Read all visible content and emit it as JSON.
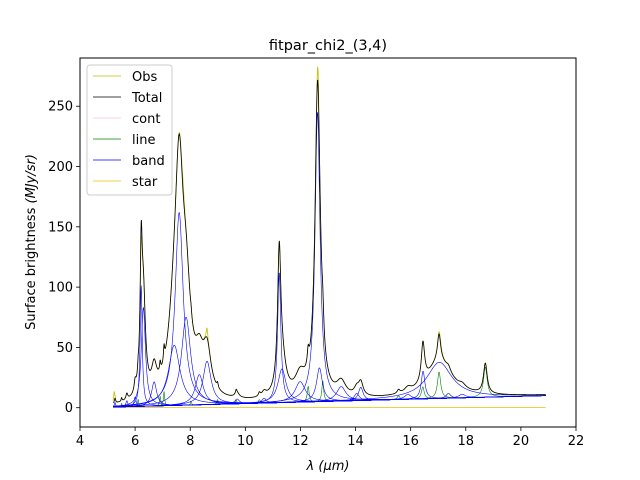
{
  "chart_data": {
    "type": "line",
    "title": "fitpar_chi2_(3,4)",
    "xlabel_symbol": "λ",
    "xlabel_unit": "(μm)",
    "ylabel_text": "Surface brightness",
    "ylabel_unit": "(MJy/sr)",
    "xlim": [
      4,
      22
    ],
    "ylim": [
      -16,
      290
    ],
    "xticks": [
      4,
      6,
      8,
      10,
      12,
      14,
      16,
      18,
      20,
      22
    ],
    "yticks": [
      0,
      50,
      100,
      150,
      200,
      250
    ],
    "grid": false,
    "legend_position": "top-left",
    "legend": [
      {
        "name": "Obs",
        "color": "#bfbf00"
      },
      {
        "name": "Total",
        "color": "#000000"
      },
      {
        "name": "cont",
        "color": "#ffc0cb"
      },
      {
        "name": "line",
        "color": "#008000"
      },
      {
        "name": "band",
        "color": "#0000ff"
      },
      {
        "name": "star",
        "color": "#e6c200"
      }
    ],
    "wave_range": [
      5.2,
      20.9
    ],
    "continuum": {
      "start": 0.5,
      "end": 10.0
    },
    "star": {
      "level": 0.3
    },
    "bands": [
      {
        "center": 5.27,
        "amplitude": 4,
        "fwhm": 0.05
      },
      {
        "center": 5.7,
        "amplitude": 5,
        "fwhm": 0.08
      },
      {
        "center": 6.0,
        "amplitude": 8,
        "fwhm": 0.08
      },
      {
        "center": 6.22,
        "amplitude": 100,
        "fwhm": 0.09
      },
      {
        "center": 6.3,
        "amplitude": 82,
        "fwhm": 0.18
      },
      {
        "center": 6.69,
        "amplitude": 20,
        "fwhm": 0.22
      },
      {
        "center": 7.42,
        "amplitude": 50,
        "fwhm": 0.5
      },
      {
        "center": 7.6,
        "amplitude": 160,
        "fwhm": 0.35
      },
      {
        "center": 7.85,
        "amplitude": 73,
        "fwhm": 0.4
      },
      {
        "center": 8.33,
        "amplitude": 25,
        "fwhm": 0.35
      },
      {
        "center": 8.61,
        "amplitude": 36,
        "fwhm": 0.35
      },
      {
        "center": 9.7,
        "amplitude": 4,
        "fwhm": 0.2
      },
      {
        "center": 10.68,
        "amplitude": 4,
        "fwhm": 0.2
      },
      {
        "center": 11.23,
        "amplitude": 108,
        "fwhm": 0.14
      },
      {
        "center": 11.33,
        "amplitude": 28,
        "fwhm": 0.35
      },
      {
        "center": 11.99,
        "amplitude": 17,
        "fwhm": 0.45
      },
      {
        "center": 12.62,
        "amplitude": 240,
        "fwhm": 0.22
      },
      {
        "center": 12.69,
        "amplitude": 28,
        "fwhm": 0.25
      },
      {
        "center": 13.48,
        "amplitude": 12,
        "fwhm": 0.4
      },
      {
        "center": 14.04,
        "amplitude": 6,
        "fwhm": 0.22
      },
      {
        "center": 14.19,
        "amplitude": 11,
        "fwhm": 0.2
      },
      {
        "center": 15.9,
        "amplitude": 4,
        "fwhm": 0.3
      },
      {
        "center": 16.45,
        "amplitude": 23,
        "fwhm": 0.16
      },
      {
        "center": 17.04,
        "amplitude": 30,
        "fwhm": 1.1
      },
      {
        "center": 17.37,
        "amplitude": 4,
        "fwhm": 0.2
      },
      {
        "center": 17.87,
        "amplitude": 3,
        "fwhm": 0.3
      }
    ],
    "lines": [
      {
        "center": 5.51,
        "amplitude": 3,
        "fwhm": 0.04
      },
      {
        "center": 6.11,
        "amplitude": 6,
        "fwhm": 0.04
      },
      {
        "center": 6.91,
        "amplitude": 8,
        "fwhm": 0.05
      },
      {
        "center": 7.05,
        "amplitude": 12,
        "fwhm": 0.05
      },
      {
        "center": 8.03,
        "amplitude": 3,
        "fwhm": 0.05
      },
      {
        "center": 8.99,
        "amplitude": 4,
        "fwhm": 0.06
      },
      {
        "center": 9.67,
        "amplitude": 3,
        "fwhm": 0.06
      },
      {
        "center": 10.51,
        "amplitude": 3,
        "fwhm": 0.08
      },
      {
        "center": 12.28,
        "amplitude": 13,
        "fwhm": 0.08
      },
      {
        "center": 12.81,
        "amplitude": 17,
        "fwhm": 0.08
      },
      {
        "center": 15.56,
        "amplitude": 3,
        "fwhm": 0.12
      },
      {
        "center": 16.44,
        "amplitude": 10,
        "fwhm": 0.12
      },
      {
        "center": 17.03,
        "amplitude": 22,
        "fwhm": 0.14
      },
      {
        "center": 18.71,
        "amplitude": 25,
        "fwhm": 0.16
      }
    ],
    "obs_excess": [
      {
        "center": 5.24,
        "amplitude": 8,
        "fwhm": 0.04
      },
      {
        "center": 6.22,
        "amplitude": -15,
        "fwhm": 0.05
      },
      {
        "center": 7.74,
        "amplitude": 8,
        "fwhm": 0.12
      },
      {
        "center": 8.61,
        "amplitude": 8,
        "fwhm": 0.06
      },
      {
        "center": 12.64,
        "amplitude": 12,
        "fwhm": 0.08
      },
      {
        "center": 17.08,
        "amplitude": 3,
        "fwhm": 0.12
      }
    ]
  }
}
